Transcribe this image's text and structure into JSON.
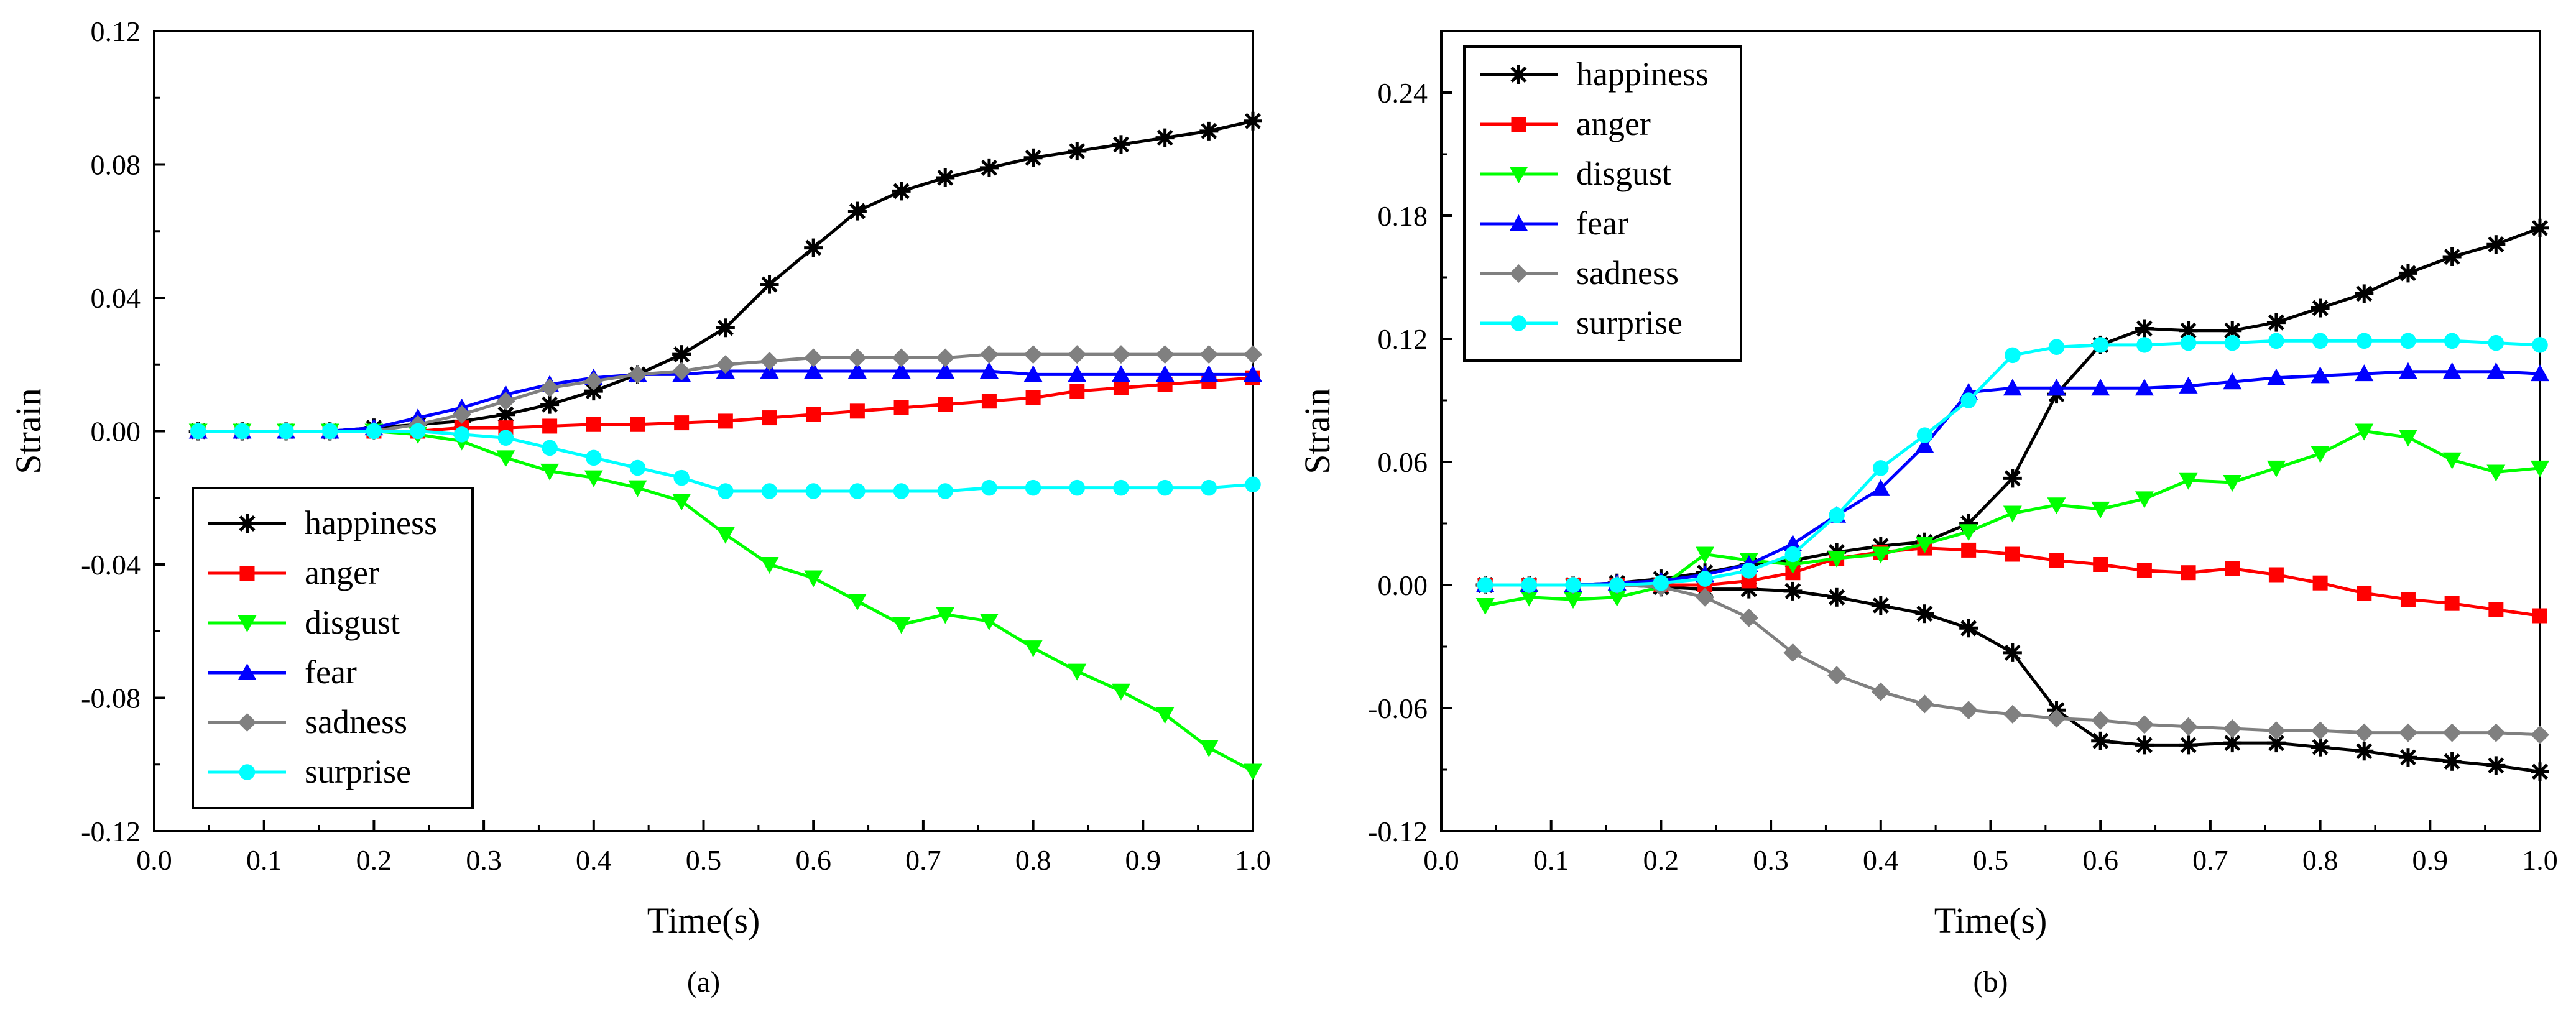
{
  "chart_data": [
    {
      "type": "line",
      "panel_label": "(a)",
      "xlabel": "Time(s)",
      "ylabel": "Strain",
      "xlim": [
        0.0,
        1.0
      ],
      "ylim": [
        -0.12,
        0.12
      ],
      "xticks": [
        0.0,
        0.1,
        0.2,
        0.3,
        0.4,
        0.5,
        0.6,
        0.7,
        0.8,
        0.9,
        1.0
      ],
      "xtick_labels": [
        "0.0",
        "0.1",
        "0.2",
        "0.3",
        "0.4",
        "0.5",
        "0.6",
        "0.7",
        "0.8",
        "0.9",
        "1.0"
      ],
      "yticks": [
        -0.12,
        -0.08,
        -0.04,
        0.0,
        0.04,
        0.08,
        0.12
      ],
      "ytick_labels": [
        "-0.12",
        "-0.08",
        "-0.04",
        "0.00",
        "0.04",
        "0.08",
        "0.12"
      ],
      "legend_position": "bottom-left",
      "grid": false,
      "x": [
        0.04,
        0.08,
        0.12,
        0.16,
        0.2,
        0.24,
        0.28,
        0.32,
        0.36,
        0.4,
        0.44,
        0.48,
        0.52,
        0.56,
        0.6,
        0.64,
        0.68,
        0.72,
        0.76,
        0.8,
        0.84,
        0.88,
        0.92,
        0.96,
        1.0
      ],
      "series": [
        {
          "name": "happiness",
          "color": "#000000",
          "marker": "asterisk",
          "values": [
            0,
            0,
            0,
            0,
            0.001,
            0.002,
            0.003,
            0.005,
            0.008,
            0.012,
            0.017,
            0.023,
            0.031,
            0.044,
            0.055,
            0.066,
            0.072,
            0.076,
            0.079,
            0.082,
            0.084,
            0.086,
            0.088,
            0.09,
            0.093
          ]
        },
        {
          "name": "anger",
          "color": "#ff0000",
          "marker": "square",
          "values": [
            0,
            0,
            0,
            0,
            0,
            0,
            0.001,
            0.001,
            0.0015,
            0.002,
            0.002,
            0.0025,
            0.003,
            0.004,
            0.005,
            0.006,
            0.007,
            0.008,
            0.009,
            0.01,
            0.012,
            0.013,
            0.014,
            0.015,
            0.016
          ]
        },
        {
          "name": "disgust",
          "color": "#00ff00",
          "marker": "triangle-down",
          "values": [
            0,
            0,
            0,
            0,
            0,
            -0.001,
            -0.003,
            -0.008,
            -0.012,
            -0.014,
            -0.017,
            -0.021,
            -0.031,
            -0.04,
            -0.044,
            -0.051,
            -0.058,
            -0.055,
            -0.057,
            -0.065,
            -0.072,
            -0.078,
            -0.085,
            -0.095,
            -0.102
          ]
        },
        {
          "name": "fear",
          "color": "#0000ff",
          "marker": "triangle-up",
          "values": [
            0,
            0,
            0,
            0,
            0.001,
            0.004,
            0.007,
            0.011,
            0.014,
            0.016,
            0.017,
            0.017,
            0.018,
            0.018,
            0.018,
            0.018,
            0.018,
            0.018,
            0.018,
            0.017,
            0.017,
            0.017,
            0.017,
            0.017,
            0.017
          ]
        },
        {
          "name": "sadness",
          "color": "#808080",
          "marker": "diamond",
          "values": [
            0,
            0,
            0,
            0,
            0,
            0.002,
            0.005,
            0.009,
            0.013,
            0.015,
            0.017,
            0.018,
            0.02,
            0.021,
            0.022,
            0.022,
            0.022,
            0.022,
            0.023,
            0.023,
            0.023,
            0.023,
            0.023,
            0.023,
            0.023
          ]
        },
        {
          "name": "surprise",
          "color": "#00ffff",
          "marker": "circle",
          "values": [
            0,
            0,
            0,
            0,
            0,
            0,
            -0.001,
            -0.002,
            -0.005,
            -0.008,
            -0.011,
            -0.014,
            -0.018,
            -0.018,
            -0.018,
            -0.018,
            -0.018,
            -0.018,
            -0.017,
            -0.017,
            -0.017,
            -0.017,
            -0.017,
            -0.017,
            -0.016
          ]
        }
      ]
    },
    {
      "type": "line",
      "panel_label": "(b)",
      "xlabel": "Time(s)",
      "ylabel": "Strain",
      "xlim": [
        0.0,
        1.0
      ],
      "ylim": [
        -0.12,
        0.27
      ],
      "xticks": [
        0.0,
        0.1,
        0.2,
        0.3,
        0.4,
        0.5,
        0.6,
        0.7,
        0.8,
        0.9,
        1.0
      ],
      "xtick_labels": [
        "0.0",
        "0.1",
        "0.2",
        "0.3",
        "0.4",
        "0.5",
        "0.6",
        "0.7",
        "0.8",
        "0.9",
        "1.0"
      ],
      "yticks": [
        -0.12,
        -0.06,
        0.0,
        0.06,
        0.12,
        0.18,
        0.24
      ],
      "ytick_labels": [
        "-0.12",
        "-0.06",
        "0.00",
        "0.06",
        "0.12",
        "0.18",
        "0.24"
      ],
      "legend_position": "top-left",
      "grid": false,
      "x": [
        0.04,
        0.08,
        0.12,
        0.16,
        0.2,
        0.24,
        0.28,
        0.32,
        0.36,
        0.4,
        0.44,
        0.48,
        0.52,
        0.56,
        0.6,
        0.64,
        0.68,
        0.72,
        0.76,
        0.8,
        0.84,
        0.88,
        0.92,
        0.96,
        1.0
      ],
      "series": [
        {
          "name": "happiness",
          "color": "#000000",
          "marker": "asterisk",
          "values": [
            0,
            0,
            0,
            0.001,
            0.003,
            0.006,
            0.01,
            0.012,
            0.016,
            0.019,
            0.021,
            0.03,
            0.052,
            0.093,
            0.117,
            0.125,
            0.124,
            0.124,
            0.128,
            0.135,
            0.142,
            0.152,
            0.16,
            0.166,
            0.174
          ],
          "values_lower": [
            0,
            0,
            0,
            0,
            -0.001,
            -0.002,
            -0.002,
            -0.003,
            -0.006,
            -0.01,
            -0.014,
            -0.021,
            -0.033,
            -0.061,
            -0.076,
            -0.078,
            -0.078,
            -0.077,
            -0.077,
            -0.079,
            -0.081,
            -0.084,
            -0.086,
            -0.088,
            -0.091
          ]
        },
        {
          "name": "anger",
          "color": "#ff0000",
          "marker": "square",
          "values": [
            0,
            0,
            0,
            0,
            0,
            0,
            0.002,
            0.006,
            0.013,
            0.016,
            0.018,
            0.017,
            0.015,
            0.012,
            0.01,
            0.007,
            0.006,
            0.008,
            0.005,
            0.001,
            -0.004,
            -0.007,
            -0.009,
            -0.012,
            -0.015
          ]
        },
        {
          "name": "disgust",
          "color": "#00ff00",
          "marker": "triangle-down",
          "values": [
            -0.01,
            -0.006,
            -0.007,
            -0.006,
            -0.001,
            0.015,
            0.012,
            0.01,
            0.013,
            0.015,
            0.02,
            0.026,
            0.035,
            0.039,
            0.037,
            0.042,
            0.051,
            0.05,
            0.057,
            0.064,
            0.075,
            0.072,
            0.061,
            0.055,
            0.057
          ]
        },
        {
          "name": "fear",
          "color": "#0000ff",
          "marker": "triangle-up",
          "values": [
            0,
            0,
            0,
            0.001,
            0.002,
            0.005,
            0.01,
            0.02,
            0.034,
            0.047,
            0.068,
            0.094,
            0.096,
            0.096,
            0.096,
            0.096,
            0.097,
            0.099,
            0.101,
            0.102,
            0.103,
            0.104,
            0.104,
            0.104,
            0.103
          ]
        },
        {
          "name": "sadness",
          "color": "#808080",
          "marker": "diamond",
          "values": [
            0,
            0,
            0,
            0,
            -0.001,
            -0.006,
            -0.016,
            -0.033,
            -0.044,
            -0.052,
            -0.058,
            -0.061,
            -0.063,
            -0.065,
            -0.066,
            -0.068,
            -0.069,
            -0.07,
            -0.071,
            -0.071,
            -0.072,
            -0.072,
            -0.072,
            -0.072,
            -0.073
          ]
        },
        {
          "name": "surprise",
          "color": "#00ffff",
          "marker": "circle",
          "values": [
            0,
            0,
            0,
            0,
            0.001,
            0.003,
            0.007,
            0.015,
            0.034,
            0.057,
            0.073,
            0.09,
            0.112,
            0.116,
            0.117,
            0.117,
            0.118,
            0.118,
            0.119,
            0.119,
            0.119,
            0.119,
            0.119,
            0.118,
            0.117
          ]
        }
      ]
    }
  ]
}
